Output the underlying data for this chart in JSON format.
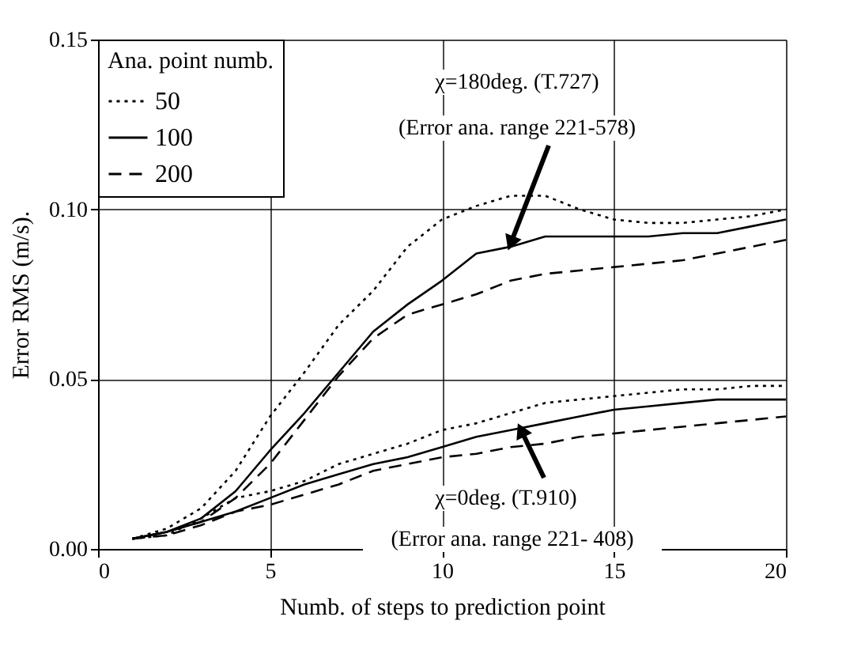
{
  "chart_data": {
    "type": "line",
    "xlabel": "Numb. of steps to prediction point",
    "ylabel": "Error RMS (m/s).",
    "legend_title": "Ana. point numb.",
    "legend": "top left",
    "grid": true,
    "xlim": [
      0,
      20
    ],
    "ylim": [
      0,
      0.15
    ],
    "xticks": [
      0,
      5,
      10,
      15,
      20
    ],
    "yticks": [
      {
        "value": 0,
        "label": "0.00"
      },
      {
        "value": 0.05,
        "label": "0.05"
      },
      {
        "value": 0.1,
        "label": "0.10"
      },
      {
        "value": 0.15,
        "label": "0.15"
      }
    ],
    "x": [
      1,
      2,
      3,
      4,
      5,
      6,
      7,
      8,
      9,
      10,
      11,
      12,
      13,
      14,
      15,
      16,
      17,
      18,
      19,
      20
    ],
    "series": [
      {
        "name": "50",
        "color": "#000000",
        "line_style": "dotted",
        "values": [
          0.003,
          0.006,
          0.012,
          0.023,
          0.039,
          0.052,
          0.066,
          0.076,
          0.089,
          0.097,
          0.101,
          0.104,
          0.104,
          0.1,
          0.097,
          0.096,
          0.096,
          0.097,
          0.098,
          0.1
        ]
      },
      {
        "name": "100",
        "color": "#000000",
        "line_style": "solid",
        "values": [
          0.003,
          0.005,
          0.009,
          0.017,
          0.029,
          0.04,
          0.052,
          0.064,
          0.072,
          0.079,
          0.087,
          0.089,
          0.092,
          0.092,
          0.092,
          0.092,
          0.093,
          0.093,
          0.095,
          0.097
        ]
      },
      {
        "name": "200",
        "color": "#000000",
        "line_style": "dashed",
        "values": [
          0.003,
          0.005,
          0.008,
          0.015,
          0.025,
          0.038,
          0.051,
          0.062,
          0.069,
          0.072,
          0.075,
          0.079,
          0.081,
          0.082,
          0.083,
          0.084,
          0.085,
          0.087,
          0.089,
          0.091
        ]
      },
      {
        "color": "#000000",
        "line_style": "dotted",
        "values": [
          0.003,
          0.004,
          0.009,
          0.015,
          0.017,
          0.02,
          0.025,
          0.028,
          0.031,
          0.035,
          0.037,
          0.04,
          0.043,
          0.044,
          0.045,
          0.046,
          0.047,
          0.047,
          0.048,
          0.048
        ]
      },
      {
        "color": "#000000",
        "line_style": "solid",
        "values": [
          0.003,
          0.005,
          0.008,
          0.011,
          0.015,
          0.019,
          0.022,
          0.025,
          0.027,
          0.03,
          0.033,
          0.035,
          0.037,
          0.039,
          0.041,
          0.042,
          0.043,
          0.044,
          0.044,
          0.044
        ]
      },
      {
        "color": "#000000",
        "line_style": "dashed",
        "values": [
          0.003,
          0.004,
          0.007,
          0.011,
          0.013,
          0.016,
          0.019,
          0.023,
          0.025,
          0.027,
          0.028,
          0.03,
          0.031,
          0.033,
          0.034,
          0.035,
          0.036,
          0.037,
          0.038,
          0.039
        ]
      }
    ],
    "annotations": [
      "χ=180deg. (T.727)",
      {
        "text": "(Error ana. range 221-578)",
        "x": 12,
        "y": 0.09
      },
      {
        "text": "χ=0deg. (T.910)",
        "x": 12.3,
        "y": 0.035
      },
      "(Error ana. range 221- 408)"
    ]
  }
}
